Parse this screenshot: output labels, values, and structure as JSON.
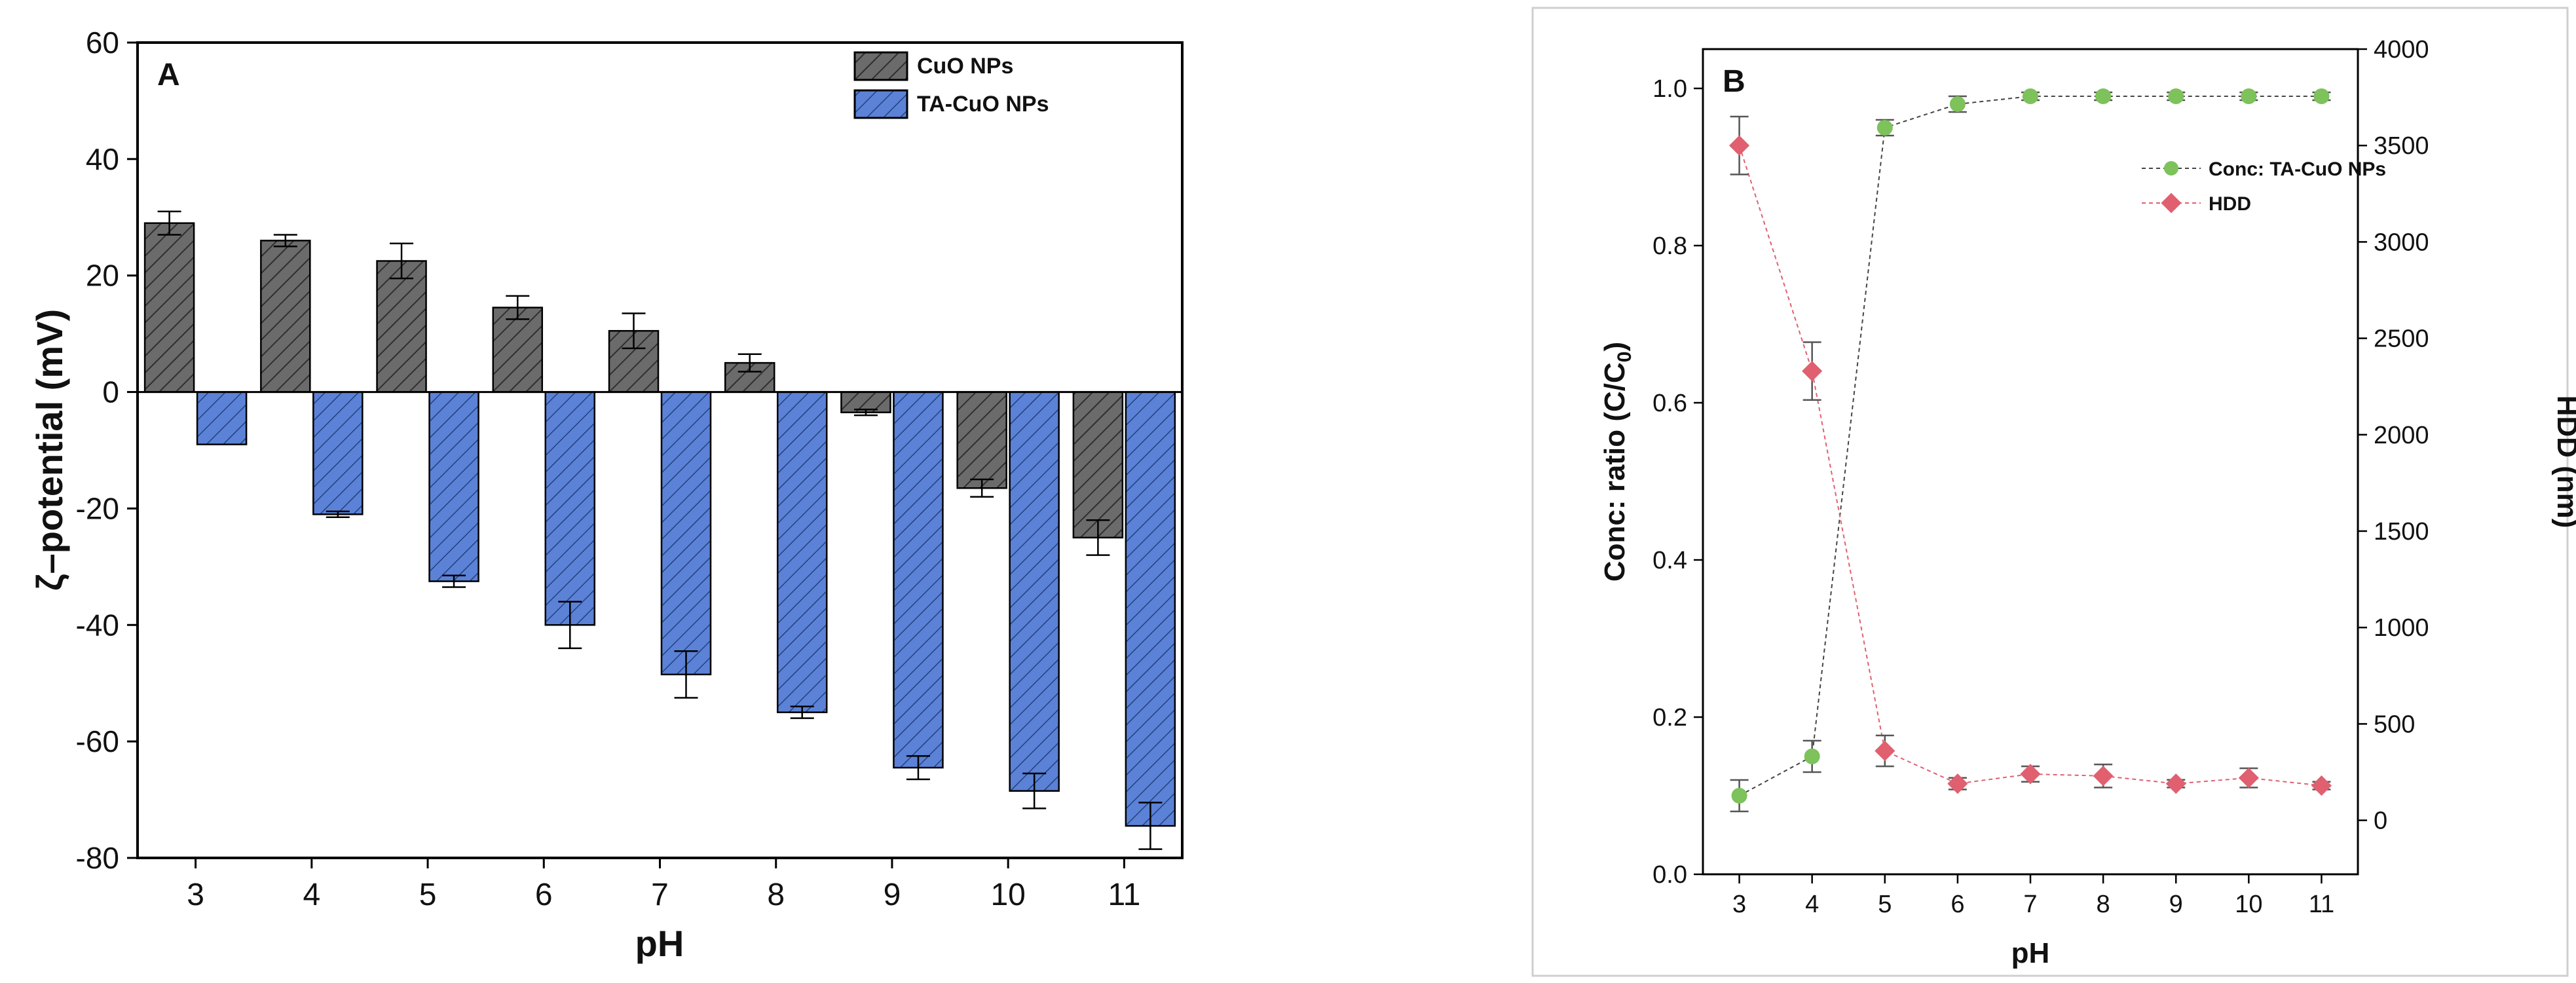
{
  "chart_data": [
    {
      "panel": "A",
      "type": "bar",
      "xlabel": "pH",
      "ylabel": "ζ–potential (mV)",
      "ylim": [
        -80,
        60
      ],
      "yticks": [
        -80,
        -60,
        -40,
        -20,
        0,
        20,
        40,
        60
      ],
      "categories": [
        "3",
        "4",
        "5",
        "6",
        "7",
        "8",
        "9",
        "10",
        "11"
      ],
      "legend_position": "top-right",
      "series": [
        {
          "name": "CuO NPs",
          "color": "#6b6b6b",
          "values": [
            29,
            26,
            22.5,
            14.5,
            10.5,
            5,
            -3.5,
            -16.5,
            -25
          ],
          "errors": [
            2,
            1,
            3,
            2,
            3,
            1.5,
            0.5,
            1.5,
            3
          ]
        },
        {
          "name": "TA-CuO NPs",
          "color": "#5b82d6",
          "values": [
            -9,
            -21,
            -32.5,
            -40,
            -48.5,
            -55,
            -64.5,
            -68.5,
            -74.5
          ],
          "errors": [
            0,
            0.5,
            1,
            4,
            4,
            1,
            2,
            3,
            4
          ]
        }
      ]
    },
    {
      "panel": "B",
      "type": "line",
      "xlabel": "pH",
      "ylabel": "Conc: ratio (C/C",
      "ylabel_sub": "0",
      "ylabel_close": ")",
      "y2label": "HDD (nm)",
      "ylim": [
        0.0,
        1.05
      ],
      "yticks": [
        0.0,
        0.2,
        0.4,
        0.6,
        0.8,
        1.0
      ],
      "ytick_labels": [
        "0.0",
        "0.2",
        "0.4",
        "0.6",
        "0.8",
        "1.0"
      ],
      "y2lim": [
        -280,
        4000
      ],
      "y2ticks": [
        0,
        500,
        1000,
        1500,
        2000,
        2500,
        3000,
        3500,
        4000
      ],
      "x": [
        3,
        4,
        5,
        6,
        7,
        8,
        9,
        10,
        11
      ],
      "xlim": [
        2.5,
        11.5
      ],
      "legend_position": "top-right",
      "series": [
        {
          "name": "Conc: TA-CuO NPs",
          "axis": "left",
          "color": "#7dc25a",
          "values": [
            0.1,
            0.15,
            0.95,
            0.98,
            0.99,
            0.99,
            0.99,
            0.99,
            0.99
          ],
          "errors": [
            0.02,
            0.02,
            0.01,
            0.01,
            0.005,
            0.005,
            0.005,
            0.005,
            0.005
          ]
        },
        {
          "name": "HDD",
          "axis": "right",
          "color": "#e06070",
          "values": [
            3500,
            2330,
            360,
            190,
            240,
            230,
            190,
            220,
            180
          ],
          "errors": [
            150,
            150,
            80,
            30,
            40,
            60,
            20,
            50,
            20
          ]
        }
      ]
    }
  ],
  "labels": {
    "panel_a": "A",
    "panel_b": "B"
  }
}
